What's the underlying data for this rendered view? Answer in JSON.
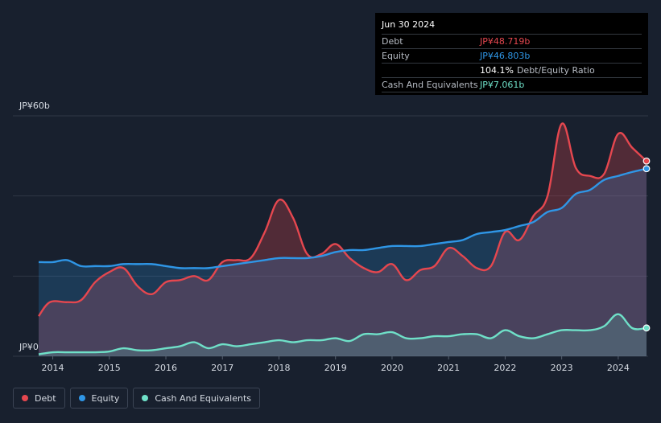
{
  "tooltip": {
    "date": "Jun 30 2024",
    "rows": [
      {
        "label": "Debt",
        "value": "JP¥48.719b",
        "color": "#e5474f"
      },
      {
        "label": "Equity",
        "value": "JP¥46.803b",
        "color": "#2f96e6"
      },
      {
        "label": "",
        "value": "104.1%",
        "suffix": "Debt/Equity Ratio"
      },
      {
        "label": "Cash And Equivalents",
        "value": "JP¥7.061b",
        "color": "#6fe0c8"
      }
    ]
  },
  "legend": [
    {
      "label": "Debt",
      "color": "#e5474f"
    },
    {
      "label": "Equity",
      "color": "#2f96e6"
    },
    {
      "label": "Cash And Equivalents",
      "color": "#6fe0c8"
    }
  ],
  "chart_data": {
    "type": "area",
    "title": "",
    "xlabel": "",
    "ylabel": "",
    "ylim": [
      0,
      60
    ],
    "xlim": [
      2013.7,
      2024.55
    ],
    "y_tick_labels": [
      {
        "value": 60,
        "label": "JP¥60b"
      },
      {
        "value": 0,
        "label": "JP¥0"
      }
    ],
    "x_ticks": [
      "2014",
      "2015",
      "2016",
      "2017",
      "2018",
      "2019",
      "2020",
      "2021",
      "2022",
      "2023",
      "2024"
    ],
    "grid": true,
    "legend_position": "bottom-left",
    "series": [
      {
        "name": "Debt",
        "color": "#e5474f",
        "x": [
          2013.75,
          2013.95,
          2014.25,
          2014.5,
          2014.75,
          2015.0,
          2015.25,
          2015.5,
          2015.75,
          2016.0,
          2016.25,
          2016.5,
          2016.75,
          2017.0,
          2017.25,
          2017.5,
          2017.75,
          2018.0,
          2018.25,
          2018.5,
          2018.75,
          2019.0,
          2019.25,
          2019.5,
          2019.75,
          2020.0,
          2020.25,
          2020.5,
          2020.75,
          2021.0,
          2021.25,
          2021.5,
          2021.75,
          2022.0,
          2022.25,
          2022.5,
          2022.75,
          2023.0,
          2023.25,
          2023.5,
          2023.75,
          2024.0,
          2024.25,
          2024.5
        ],
        "values": [
          10.0,
          13.5,
          13.5,
          14.0,
          18.5,
          21.0,
          22.0,
          17.5,
          15.5,
          18.5,
          19.0,
          20.0,
          19.0,
          23.5,
          24.0,
          24.5,
          31.0,
          39.0,
          34.5,
          25.5,
          25.5,
          28.0,
          24.5,
          22.0,
          21.0,
          23.0,
          19.0,
          21.5,
          22.5,
          27.0,
          25.0,
          22.0,
          22.5,
          31.0,
          29.0,
          35.0,
          40.0,
          58.0,
          47.0,
          45.0,
          45.5,
          55.5,
          52.0,
          48.719
        ]
      },
      {
        "name": "Equity",
        "color": "#2f96e6",
        "x": [
          2013.75,
          2014.0,
          2014.25,
          2014.5,
          2014.75,
          2015.0,
          2015.25,
          2015.5,
          2015.75,
          2016.0,
          2016.25,
          2016.5,
          2016.75,
          2017.0,
          2017.25,
          2017.5,
          2017.75,
          2018.0,
          2018.25,
          2018.5,
          2018.75,
          2019.0,
          2019.25,
          2019.5,
          2019.75,
          2020.0,
          2020.25,
          2020.5,
          2020.75,
          2021.0,
          2021.25,
          2021.5,
          2021.75,
          2022.0,
          2022.25,
          2022.5,
          2022.75,
          2023.0,
          2023.25,
          2023.5,
          2023.75,
          2024.0,
          2024.25,
          2024.5
        ],
        "values": [
          23.5,
          23.5,
          24.0,
          22.5,
          22.5,
          22.5,
          23.0,
          23.0,
          23.0,
          22.5,
          22.0,
          22.0,
          22.0,
          22.5,
          23.0,
          23.5,
          24.0,
          24.5,
          24.5,
          24.5,
          25.0,
          26.0,
          26.5,
          26.5,
          27.0,
          27.5,
          27.5,
          27.5,
          28.0,
          28.5,
          29.0,
          30.5,
          31.0,
          31.5,
          32.5,
          33.5,
          36.0,
          37.0,
          40.5,
          41.5,
          44.0,
          45.0,
          46.0,
          46.803
        ]
      },
      {
        "name": "Cash And Equivalents",
        "color": "#6fe0c8",
        "x": [
          2013.75,
          2014.0,
          2014.25,
          2014.5,
          2014.75,
          2015.0,
          2015.25,
          2015.5,
          2015.75,
          2016.0,
          2016.25,
          2016.5,
          2016.75,
          2017.0,
          2017.25,
          2017.5,
          2017.75,
          2018.0,
          2018.25,
          2018.5,
          2018.75,
          2019.0,
          2019.25,
          2019.5,
          2019.75,
          2020.0,
          2020.25,
          2020.5,
          2020.75,
          2021.0,
          2021.25,
          2021.5,
          2021.75,
          2022.0,
          2022.25,
          2022.5,
          2022.75,
          2023.0,
          2023.25,
          2023.5,
          2023.75,
          2024.0,
          2024.25,
          2024.5
        ],
        "values": [
          0.5,
          1.0,
          1.0,
          1.0,
          1.0,
          1.2,
          2.0,
          1.5,
          1.5,
          2.0,
          2.5,
          3.5,
          2.0,
          3.0,
          2.5,
          3.0,
          3.5,
          4.0,
          3.5,
          4.0,
          4.0,
          4.5,
          3.8,
          5.5,
          5.5,
          6.0,
          4.5,
          4.5,
          5.0,
          5.0,
          5.5,
          5.5,
          4.5,
          6.5,
          5.0,
          4.5,
          5.5,
          6.5,
          6.5,
          6.5,
          7.5,
          10.5,
          7.0,
          7.061
        ]
      }
    ]
  }
}
